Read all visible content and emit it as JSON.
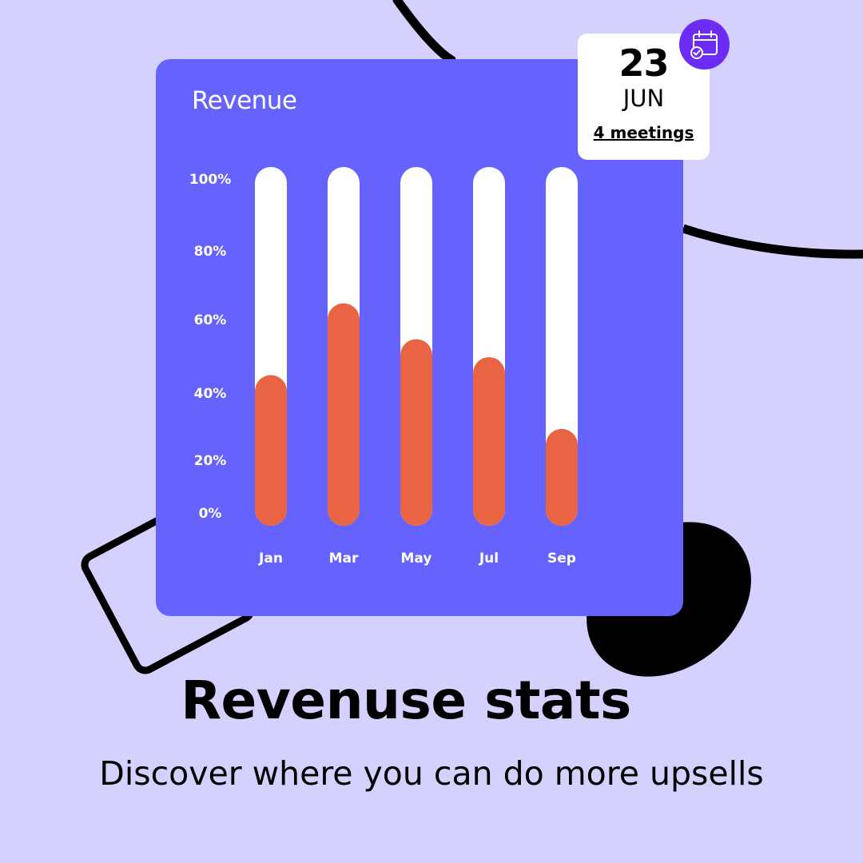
{
  "colors": {
    "background": "#d4d1fe",
    "card": "#6662fe",
    "bar_track": "#ffffff",
    "bar_fill": "#e96442",
    "badge": "#6c2cf5",
    "text": "#000000"
  },
  "date_card": {
    "day": "23",
    "month": "JUN",
    "link_label": "4 meetings",
    "icon": "calendar-check-icon"
  },
  "chart_data": {
    "type": "bar",
    "title": "Revenue",
    "categories": [
      "Jan",
      "Mar",
      "May",
      "Jul",
      "Sep"
    ],
    "values": [
      42,
      62,
      52,
      47,
      27
    ],
    "ylim": [
      0,
      100
    ],
    "yticks": [
      "100%",
      "80%",
      "60%",
      "40%",
      "20%",
      "0%"
    ],
    "xlabel": "",
    "ylabel": "",
    "grid": false,
    "legend": "none"
  },
  "footer": {
    "headline": "Revenuse stats",
    "subline": "Discover where you can do more upsells"
  }
}
